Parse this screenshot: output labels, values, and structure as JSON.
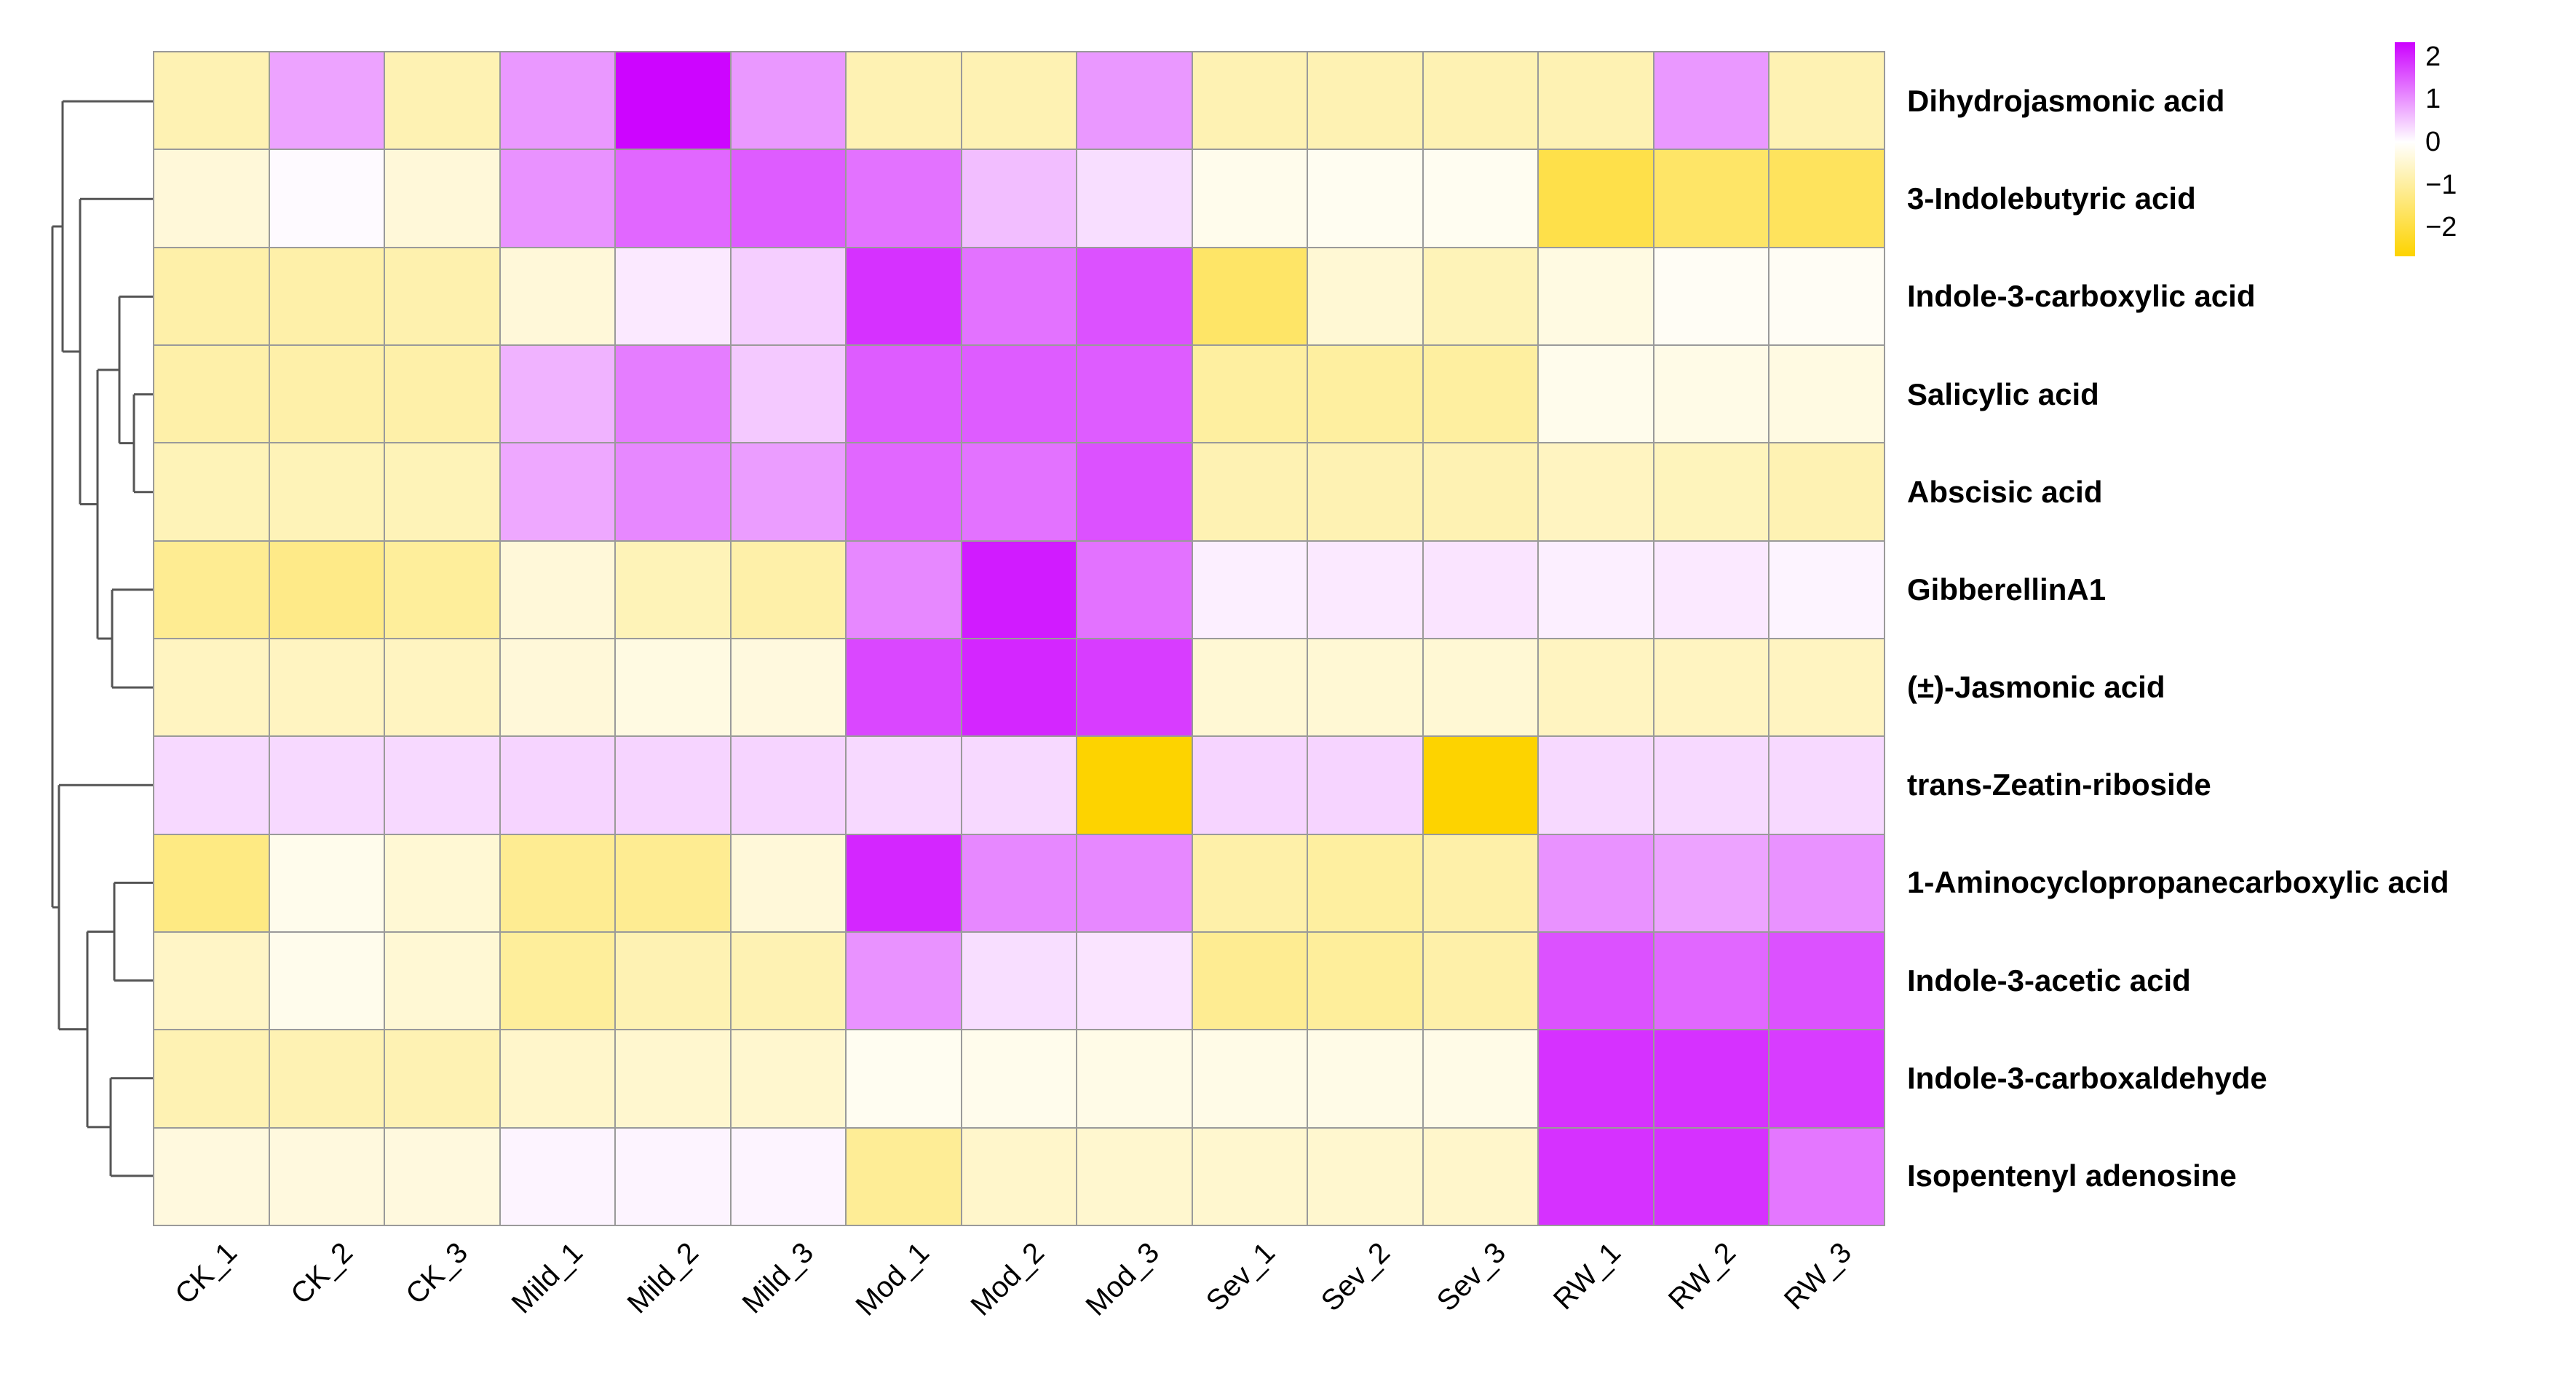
{
  "figure": {
    "background": "#FFFFFF"
  },
  "chart_data": {
    "type": "heatmap",
    "title": "",
    "xlabel": "",
    "ylabel": "",
    "columns": [
      "CK_1",
      "CK_2",
      "CK_3",
      "Mild_1",
      "Mild_2",
      "Mild_3",
      "Mod_1",
      "Mod_2",
      "Mod_3",
      "Sev_1",
      "Sev_2",
      "Sev_3",
      "RW_1",
      "RW_2",
      "RW_3"
    ],
    "rows": [
      "Dihydrojasmonic acid",
      "3-Indolebutyric acid",
      "Indole-3-carboxylic acid",
      "Salicylic acid",
      "Abscisic acid",
      "GibberellinA1",
      "(±)-Jasmonic acid",
      "trans-Zeatin-riboside",
      "1-Aminocyclopropanecarboxylic acid",
      "Indole-3-acetic acid",
      "Indole-3-carboxaldehyde",
      "Isopentenyl adenosine"
    ],
    "values": [
      [
        -0.8,
        0.85,
        -0.8,
        0.95,
        2.3,
        0.95,
        -0.8,
        -0.8,
        0.95,
        -0.8,
        -0.8,
        -0.8,
        -0.8,
        0.95,
        -0.8
      ],
      [
        -0.4,
        0.05,
        -0.4,
        1.0,
        1.4,
        1.5,
        1.3,
        0.6,
        0.3,
        -0.2,
        -0.15,
        -0.15,
        -1.9,
        -1.6,
        -1.7
      ],
      [
        -0.9,
        -0.9,
        -0.85,
        -0.4,
        0.2,
        0.45,
        1.9,
        1.3,
        1.6,
        -1.6,
        -0.45,
        -0.75,
        -0.3,
        -0.1,
        -0.1
      ],
      [
        -0.9,
        -0.9,
        -0.9,
        0.7,
        1.2,
        0.5,
        1.5,
        1.5,
        1.5,
        -1.0,
        -1.0,
        -1.0,
        -0.2,
        -0.25,
        -0.3
      ],
      [
        -0.75,
        -0.75,
        -0.75,
        0.8,
        1.1,
        0.9,
        1.4,
        1.3,
        1.6,
        -0.8,
        -0.8,
        -0.8,
        -0.65,
        -0.7,
        -0.8
      ],
      [
        -1.15,
        -1.25,
        -1.05,
        -0.4,
        -0.75,
        -0.9,
        1.1,
        2.1,
        1.3,
        0.15,
        0.2,
        0.25,
        0.15,
        0.2,
        0.1
      ],
      [
        -0.65,
        -0.65,
        -0.65,
        -0.4,
        -0.3,
        -0.35,
        1.7,
        2.0,
        1.8,
        -0.45,
        -0.45,
        -0.45,
        -0.65,
        -0.65,
        -0.65
      ],
      [
        0.35,
        0.35,
        0.35,
        0.4,
        0.4,
        0.4,
        0.35,
        0.35,
        -2.68,
        0.4,
        0.4,
        -2.68,
        0.35,
        0.35,
        0.35
      ],
      [
        -1.3,
        -0.2,
        -0.45,
        -1.15,
        -1.15,
        -0.4,
        2.0,
        1.1,
        1.1,
        -0.9,
        -1.0,
        -0.9,
        1.0,
        0.85,
        1.0
      ],
      [
        -0.6,
        -0.2,
        -0.45,
        -1.05,
        -0.8,
        -0.8,
        1.0,
        0.3,
        0.25,
        -1.15,
        -1.05,
        -0.9,
        1.6,
        1.4,
        1.6
      ],
      [
        -0.8,
        -0.8,
        -0.8,
        -0.55,
        -0.5,
        -0.5,
        -0.15,
        -0.2,
        -0.25,
        -0.25,
        -0.25,
        -0.25,
        1.9,
        1.9,
        1.8
      ],
      [
        -0.35,
        -0.35,
        -0.35,
        0.1,
        0.1,
        0.1,
        -1.1,
        -0.55,
        -0.5,
        -0.5,
        -0.5,
        -0.55,
        1.9,
        1.9,
        1.25
      ]
    ],
    "colormap": {
      "positive_end": "#CC00FF",
      "midpoint": "#FFFFFF",
      "negative_end": "#FDD300",
      "positive_limit": 2.35,
      "negative_limit": 2.68
    },
    "grid": {
      "on": true,
      "line_color": "#9A9A9A"
    },
    "legend": {
      "position": "top-right",
      "tick_labels": [
        "2",
        "1",
        "0",
        "−1",
        "−2"
      ],
      "tick_values": [
        2,
        1,
        0,
        -1,
        -2
      ],
      "range": [
        2.34,
        -2.68
      ]
    },
    "row_dendrogram": {
      "d": 140,
      "children": [
        {
          "d": 126,
          "children": [
            {
              "leaf": 0
            },
            {
              "d": 102,
              "children": [
                {
                  "leaf": 1
                },
                {
                  "d": 78,
                  "children": [
                    {
                      "d": 48,
                      "children": [
                        {
                          "leaf": 2
                        },
                        {
                          "d": 28,
                          "children": [
                            {
                              "leaf": 3
                            },
                            {
                              "leaf": 4
                            }
                          ]
                        }
                      ]
                    },
                    {
                      "d": 58,
                      "children": [
                        {
                          "leaf": 5
                        },
                        {
                          "leaf": 6
                        }
                      ]
                    }
                  ]
                }
              ]
            }
          ]
        },
        {
          "d": 131,
          "children": [
            {
              "leaf": 7
            },
            {
              "d": 92,
              "children": [
                {
                  "d": 55,
                  "children": [
                    {
                      "leaf": 8
                    },
                    {
                      "leaf": 9
                    }
                  ]
                },
                {
                  "d": 60,
                  "children": [
                    {
                      "leaf": 10
                    },
                    {
                      "leaf": 11
                    }
                  ]
                }
              ]
            }
          ]
        }
      ]
    }
  }
}
